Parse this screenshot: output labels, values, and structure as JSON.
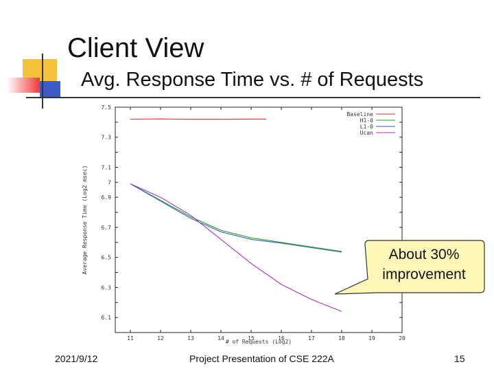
{
  "slide": {
    "title": "Client View",
    "subtitle": "Avg. Response Time vs. # of Requests",
    "callout": "About 30% improvement",
    "footer_date": "2021/9/12",
    "footer_center": "Project Presentation of CSE 222A",
    "page_number": "15",
    "colors": {
      "yellow": "#f5c33b",
      "red": "#f03b3b",
      "blue": "#3c5bc7",
      "divider": "#333333"
    }
  },
  "chart_data": {
    "type": "line",
    "title": "",
    "xlabel": "# of Requests (Log2)",
    "ylabel": "Average Response Time (Log2 msec)",
    "xlim": [
      10.5,
      20
    ],
    "ylim": [
      6,
      7.5
    ],
    "xticks": [
      "11",
      "12",
      "13",
      "14",
      "15",
      "16",
      "17",
      "18",
      "19",
      "20"
    ],
    "yticks": [
      "7.5",
      "7.4",
      "7.3",
      "7.2",
      "7.1",
      "7",
      "6.9",
      "6.8",
      "6.7",
      "6.6",
      "6.5",
      "6.4",
      "6.3",
      "6.2",
      "6.1",
      "6"
    ],
    "legend_position": "top-right",
    "grid": false,
    "series": [
      {
        "name": "Baseline",
        "color": "#e03030",
        "x": [
          11,
          12,
          13,
          14,
          15,
          15.5
        ],
        "y": [
          7.42,
          7.422,
          7.419,
          7.419,
          7.421,
          7.421
        ]
      },
      {
        "name": "H1-0",
        "color": "#2aa02a",
        "x": [
          11,
          12,
          13,
          14,
          15,
          16,
          17,
          18
        ],
        "y": [
          6.99,
          6.88,
          6.77,
          6.68,
          6.63,
          6.6,
          6.57,
          6.54
        ]
      },
      {
        "name": "L1-0",
        "color": "#3060c0",
        "x": [
          11,
          12,
          13,
          14,
          15,
          16,
          17,
          18
        ],
        "y": [
          6.99,
          6.875,
          6.76,
          6.67,
          6.62,
          6.595,
          6.565,
          6.535
        ]
      },
      {
        "name": "Ucan",
        "color": "#b030c0",
        "x": [
          11,
          12,
          13,
          14,
          15,
          16,
          17,
          18
        ],
        "y": [
          6.99,
          6.9,
          6.78,
          6.62,
          6.46,
          6.32,
          6.22,
          6.14
        ]
      }
    ]
  }
}
